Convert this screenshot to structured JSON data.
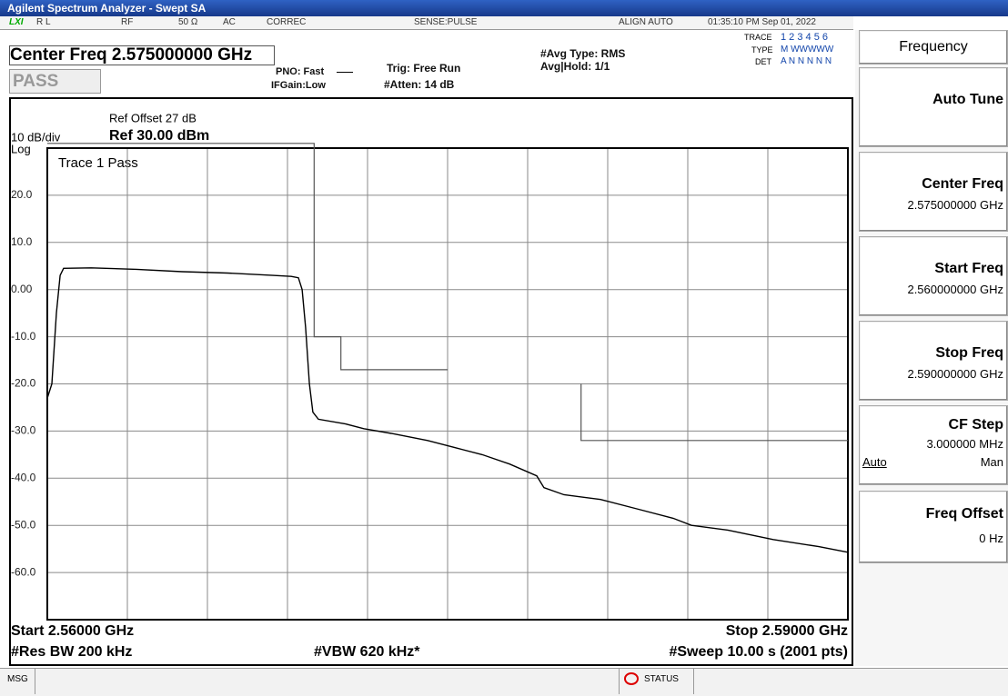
{
  "window": {
    "title": "Agilent Spectrum Analyzer - Swept SA"
  },
  "status_bar": [
    "LXI",
    "R L",
    "RF",
    "50 Ω",
    "AC",
    "CORREC",
    "SENSE:PULSE",
    "ALIGN AUTO",
    "01:35:10 PM Sep 01, 2022"
  ],
  "header": {
    "center_freq": "Center Freq 2.575000000 GHz",
    "pass": "PASS",
    "pno": "PNO: Fast",
    "ifgain": "IFGain:Low",
    "trig": "Trig: Free Run",
    "atten": "#Atten: 14 dB",
    "avg_type": "#Avg Type: RMS",
    "avg_hold": "Avg|Hold: 1/1",
    "trace_label": "TRACE",
    "trace_value": "1 2 3 4 5 6",
    "type_label": "TYPE",
    "type_value": "M WWWWW",
    "det_label": "DET",
    "det_value": "A N N N N N"
  },
  "chart_data": {
    "type": "line",
    "ref_offset": "Ref Offset 27 dB",
    "scale": "10 dB/div",
    "ref_level": "Ref 30.00 dBm",
    "scale_type": "Log",
    "annotation": "Trace 1 Pass",
    "xlim": [
      2.56,
      2.59
    ],
    "ylim": [
      -70,
      30
    ],
    "yticks": [
      {
        "value": 20,
        "label": "20.0"
      },
      {
        "value": 10,
        "label": "10.0"
      },
      {
        "value": 0,
        "label": "0.00"
      },
      {
        "value": -10,
        "label": "-10.0"
      },
      {
        "value": -20,
        "label": "-20.0"
      },
      {
        "value": -30,
        "label": "-30.0"
      },
      {
        "value": -40,
        "label": "-40.0"
      },
      {
        "value": -50,
        "label": "-50.0"
      },
      {
        "value": -60,
        "label": "-60.0"
      }
    ],
    "grid": true,
    "x": [
      2.56,
      2.56017,
      2.56034,
      2.56048,
      2.56061,
      2.56164,
      2.56334,
      2.56505,
      2.56675,
      2.56845,
      2.56914,
      2.56941,
      2.56955,
      2.56968,
      2.56982,
      2.56995,
      2.57016,
      2.57118,
      2.57186,
      2.57289,
      2.57425,
      2.57527,
      2.5763,
      2.57732,
      2.57834,
      2.57861,
      2.57936,
      2.58073,
      2.58209,
      2.58345,
      2.58414,
      2.5855,
      2.5872,
      2.58891,
      2.59
    ],
    "series": [
      {
        "color": "#000000",
        "values": [
          -23,
          -20,
          -5,
          3,
          4.5,
          4.6,
          4.3,
          3.8,
          3.5,
          3.0,
          2.8,
          2.5,
          0,
          -8,
          -20,
          -26,
          -27.5,
          -28.5,
          -29.5,
          -30.5,
          -32,
          -33.5,
          -35,
          -37,
          -39.5,
          -42,
          -43.5,
          -44.5,
          -46.5,
          -48.5,
          -50,
          -51,
          -53,
          -54.5,
          -55.7
        ]
      }
    ],
    "limit_lines": [
      {
        "color": "#555555",
        "x": [
          2.56,
          2.57,
          2.57,
          2.571,
          2.571,
          2.575
        ],
        "values": [
          31,
          31,
          -10,
          -10,
          -17,
          -17
        ]
      },
      {
        "color": "#555555",
        "x": [
          2.58,
          2.58,
          2.59
        ],
        "values": [
          -20,
          -32,
          -32
        ]
      }
    ]
  },
  "footer": {
    "start": "Start 2.56000 GHz",
    "stop": "Stop 2.59000 GHz",
    "rbw": "#Res BW 200 kHz",
    "vbw": "#VBW 620 kHz*",
    "sweep": "#Sweep  10.00 s (2001 pts)"
  },
  "softkeys": {
    "title": "Frequency",
    "keys": [
      {
        "label": "Auto Tune"
      },
      {
        "label": "Center Freq",
        "value": "2.575000000 GHz"
      },
      {
        "label": "Start Freq",
        "value": "2.560000000 GHz"
      },
      {
        "label": "Stop Freq",
        "value": "2.590000000 GHz"
      },
      {
        "label": "CF Step",
        "value": "3.000000 MHz",
        "options": [
          "Auto",
          "Man"
        ]
      },
      {
        "label": "Freq Offset",
        "value": "0 Hz"
      }
    ]
  },
  "message_bar": {
    "msg": "MSG",
    "status": "STATUS"
  }
}
